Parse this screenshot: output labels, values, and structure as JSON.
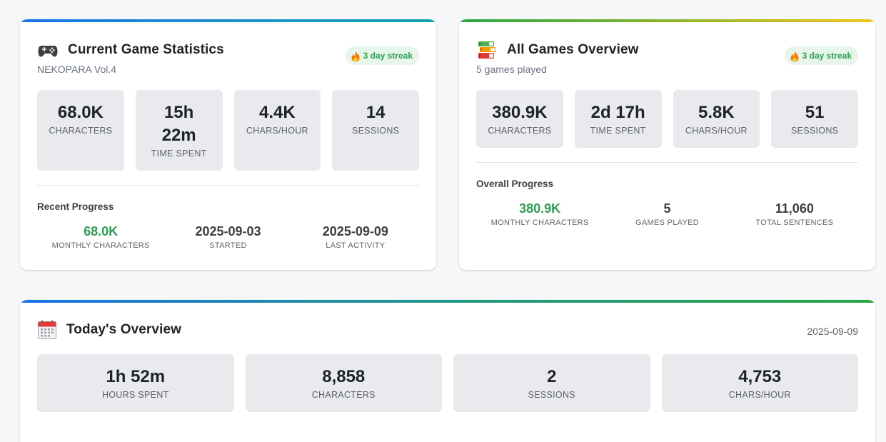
{
  "current_game": {
    "title": "Current Game Statistics",
    "game_name": "NEKOPARA Vol.4",
    "streak": "3 day streak",
    "stats": [
      {
        "value": "68.0K",
        "label": "CHARACTERS"
      },
      {
        "value": "15h 22m",
        "label": "TIME SPENT"
      },
      {
        "value": "4.4K",
        "label": "CHARS/HOUR"
      },
      {
        "value": "14",
        "label": "SESSIONS"
      }
    ],
    "progress_label": "Recent Progress",
    "progress": [
      {
        "value": "68.0K",
        "label": "MONTHLY CHARACTERS"
      },
      {
        "value": "2025-09-03",
        "label": "STARTED"
      },
      {
        "value": "2025-09-09",
        "label": "LAST ACTIVITY"
      }
    ]
  },
  "all_games": {
    "title": "All Games Overview",
    "subtitle": "5 games played",
    "streak": "3 day streak",
    "stats": [
      {
        "value": "380.9K",
        "label": "CHARACTERS"
      },
      {
        "value": "2d 17h",
        "label": "TIME SPENT"
      },
      {
        "value": "5.8K",
        "label": "CHARS/HOUR"
      },
      {
        "value": "51",
        "label": "SESSIONS"
      }
    ],
    "progress_label": "Overall Progress",
    "progress": [
      {
        "value": "380.9K",
        "label": "MONTHLY CHARACTERS"
      },
      {
        "value": "5",
        "label": "GAMES PLAYED"
      },
      {
        "value": "11,060",
        "label": "TOTAL SENTENCES"
      }
    ]
  },
  "today": {
    "title": "Today's Overview",
    "date": "2025-09-09",
    "stats": [
      {
        "value": "1h 52m",
        "label": "HOURS SPENT"
      },
      {
        "value": "8,858",
        "label": "CHARACTERS"
      },
      {
        "value": "2",
        "label": "SESSIONS"
      },
      {
        "value": "4,753",
        "label": "CHARS/HOUR"
      }
    ]
  },
  "icons": {
    "current_game": "game-controller-icon",
    "all_games": "book-stack-icon",
    "today": "calendar-icon",
    "streak": "fire-icon"
  },
  "colors": {
    "accent_green": "#2e9e4f",
    "accent_blue": "#1a73e8",
    "streak_bg": "#e7f6ec",
    "stat_bg": "#e8eaed"
  }
}
